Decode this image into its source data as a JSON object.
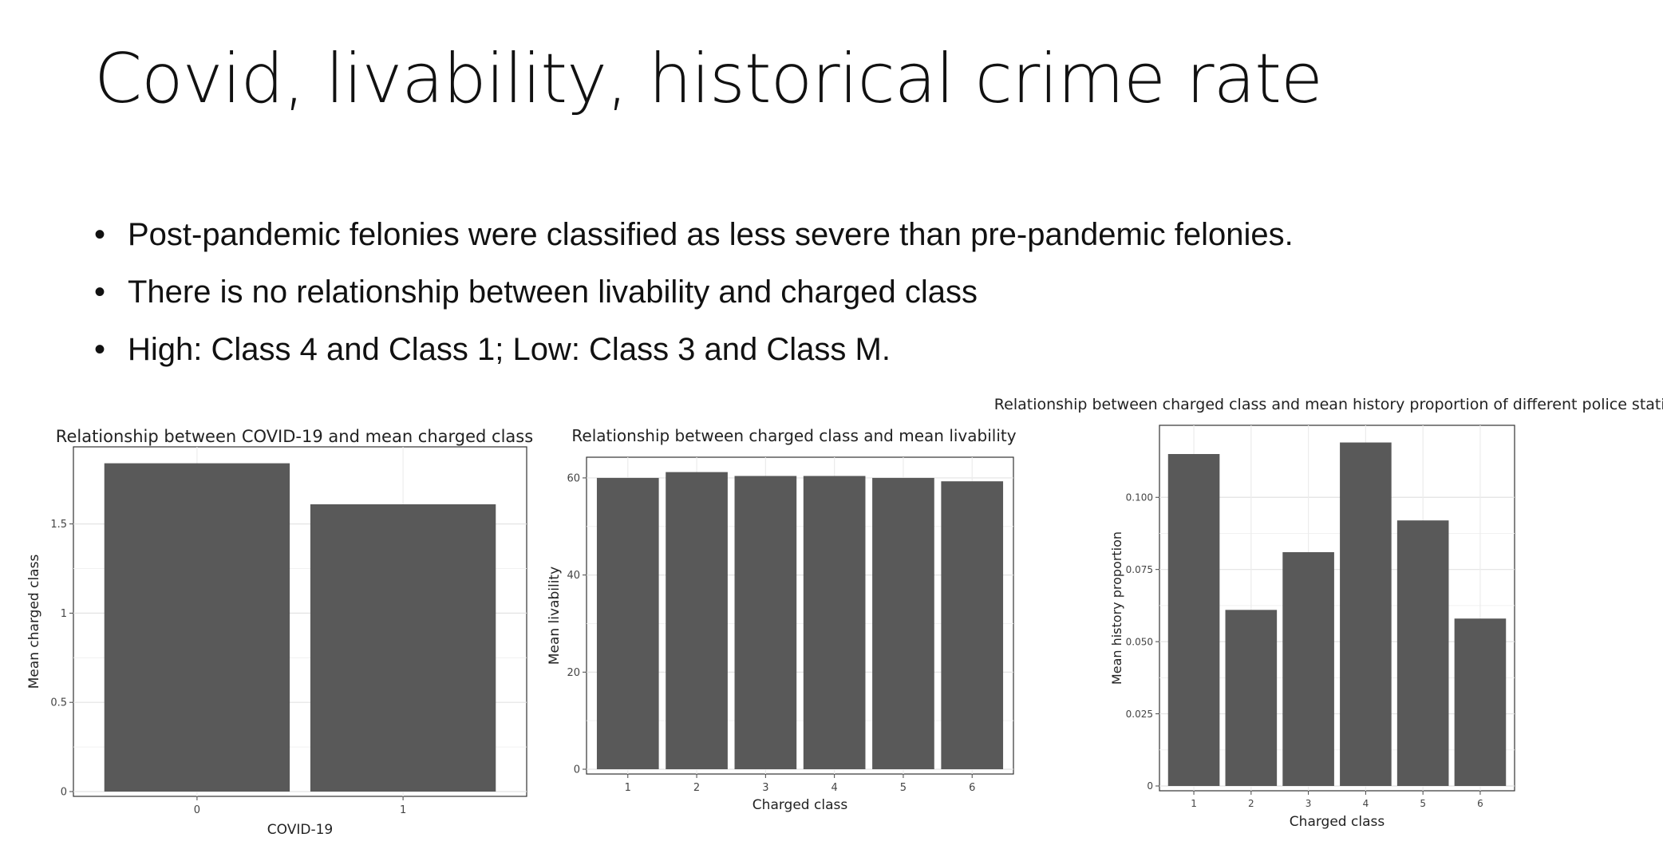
{
  "slide": {
    "title": "Covid, livability, historical crime rate",
    "bullets": [
      "Post-pandemic felonies were classified as less severe than pre-pandemic felonies.",
      "There is no relationship between livability and charged class",
      "High: Class 4 and Class 1; Low: Class 3 and Class M."
    ]
  },
  "chart_data": [
    {
      "type": "bar",
      "title": "Relationship between COVID-19 and mean charged class",
      "xlabel": "COVID-19",
      "ylabel": "Mean charged class",
      "categories": [
        "0",
        "1"
      ],
      "values": [
        1.84,
        1.61
      ],
      "ylim": [
        0,
        1.84
      ],
      "yticks": [
        0,
        0.5,
        1,
        1.5
      ],
      "ytick_labels": [
        "0",
        "0.5",
        "1",
        "1.5"
      ],
      "bar_color": "#595959",
      "grid": true
    },
    {
      "type": "bar",
      "title": "Relationship between charged class and mean livability",
      "xlabel": "Charged class",
      "ylabel": "Mean livability",
      "categories": [
        "1",
        "2",
        "3",
        "4",
        "5",
        "6"
      ],
      "values": [
        60.0,
        61.2,
        60.4,
        60.4,
        60.0,
        59.3
      ],
      "ylim": [
        0,
        61.2
      ],
      "yticks": [
        0,
        20,
        40,
        60
      ],
      "ytick_labels": [
        "0",
        "20",
        "40",
        "60"
      ],
      "bar_color": "#595959",
      "grid": true
    },
    {
      "type": "bar",
      "title": "Relationship between charged class and mean history proportion of different police stations",
      "xlabel": "Charged class",
      "ylabel": "Mean history proportion",
      "categories": [
        "1",
        "2",
        "3",
        "4",
        "5",
        "6"
      ],
      "values": [
        0.115,
        0.061,
        0.081,
        0.119,
        0.092,
        0.058
      ],
      "ylim": [
        0,
        0.119
      ],
      "yticks": [
        0,
        0.025,
        0.05,
        0.075,
        0.1
      ],
      "ytick_labels": [
        "0",
        "0.025",
        "0.050",
        "0.075",
        "0.100"
      ],
      "bar_color": "#595959",
      "grid": true
    }
  ]
}
